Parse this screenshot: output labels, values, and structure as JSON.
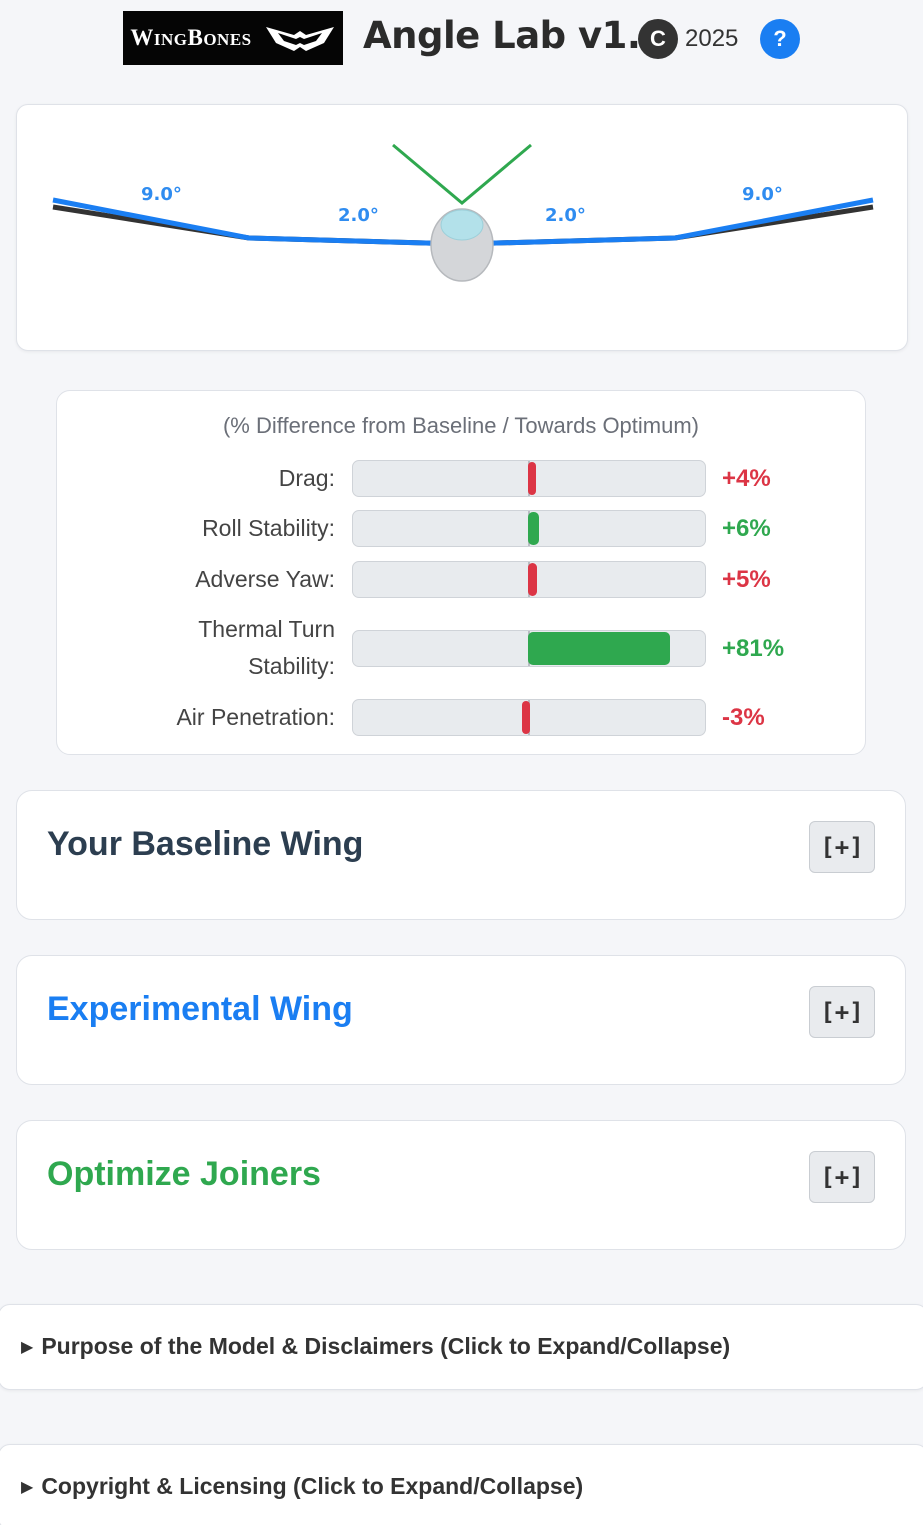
{
  "header": {
    "logo_text_big1": "W",
    "logo_text_small1": "ING",
    "logo_text_big2": "B",
    "logo_text_small2": "ONES",
    "title": "Angle Lab v1.0",
    "copyright_symbol": "C",
    "year": "2025",
    "help_label": "?"
  },
  "wing": {
    "left_outer_angle": "9.0°",
    "left_inner_angle": "2.0°",
    "right_inner_angle": "2.0°",
    "right_outer_angle": "9.0°",
    "colors": {
      "experimental": "#1a7ef2",
      "baseline": "#333333",
      "tail": "#2fa84f"
    }
  },
  "metrics": {
    "subtitle": "(% Difference from Baseline / Towards Optimum)",
    "rows": [
      {
        "label": "Drag:",
        "value": "+4%",
        "level": 0.04,
        "good": false
      },
      {
        "label": "Roll Stability:",
        "value": "+6%",
        "level": 0.06,
        "good": true
      },
      {
        "label": "Adverse Yaw:",
        "value": "+5%",
        "level": 0.05,
        "good": false
      },
      {
        "label_line1": "Thermal Turn",
        "label_line2": "Stability:",
        "value": "+81%",
        "level": 0.81,
        "good": true
      },
      {
        "label": "Air Penetration:",
        "value": "-3%",
        "level": -0.03,
        "good": false
      }
    ]
  },
  "sections": {
    "baseline": {
      "title": "Your Baseline Wing",
      "toggle": "[+]",
      "color": "#2c3e50"
    },
    "experimental": {
      "title": "Experimental Wing",
      "toggle": "[+]",
      "color": "#1a7ef2"
    },
    "optimize": {
      "title": "Optimize Joiners",
      "toggle": "[+]",
      "color": "#2fa84f"
    }
  },
  "details": {
    "purpose": "Purpose of the Model & Disclaimers (Click to Expand/Collapse)",
    "copyright": "Copyright & Licensing (Click to Expand/Collapse)",
    "marker": "▶"
  }
}
